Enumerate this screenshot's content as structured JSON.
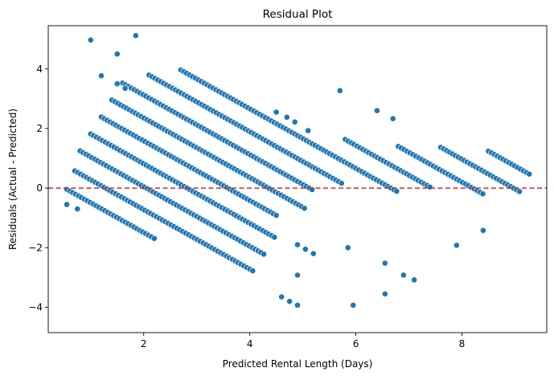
{
  "chart_data": {
    "type": "scatter",
    "title": "Residual Plot",
    "xlabel": "Predicted Rental Length (Days)",
    "ylabel": "Residuals (Actual - Predicted)",
    "xlim": [
      0.2,
      9.6
    ],
    "ylim": [
      -4.85,
      5.45
    ],
    "xticks": [
      2,
      4,
      6,
      8
    ],
    "xtick_labels": [
      "2",
      "4",
      "6",
      "8"
    ],
    "yticks": [
      -4,
      -2,
      0,
      2,
      4
    ],
    "ytick_labels": [
      "−4",
      "−2",
      "0",
      "2",
      "4"
    ],
    "grid": false,
    "legend": "none",
    "point_color": "#1f77b4",
    "reference_line": {
      "y": 0,
      "style": "dashed",
      "color": "#d62728"
    },
    "bands": [
      {
        "offset": 1,
        "x_range": [
          0.55,
          2.2
        ]
      },
      {
        "offset": 2,
        "x_range": [
          0.7,
          4.1
        ]
      },
      {
        "offset": 3,
        "x_range": [
          0.8,
          4.3
        ]
      },
      {
        "offset": 4,
        "x_range": [
          1.0,
          4.5
        ]
      },
      {
        "offset": 5,
        "x_range": [
          1.2,
          4.5
        ]
      },
      {
        "offset": 6,
        "x_range": [
          1.4,
          5.05
        ]
      },
      {
        "offset": 7,
        "x_range": [
          1.6,
          5.2
        ]
      },
      {
        "offset": 8,
        "x_range": [
          2.1,
          5.75
        ]
      },
      {
        "offset": 9,
        "x_range": [
          2.7,
          6.8
        ]
      },
      {
        "offset": 10,
        "x_range": [
          5.8,
          7.4
        ]
      },
      {
        "offset": 11,
        "x_range": [
          6.8,
          8.4
        ]
      },
      {
        "offset": 12,
        "x_range": [
          7.6,
          9.1
        ]
      },
      {
        "offset": 13,
        "x_range": [
          8.5,
          9.3
        ]
      }
    ],
    "extra_points": [
      {
        "x": 1.0,
        "y": 4.97
      },
      {
        "x": 1.85,
        "y": 5.12
      },
      {
        "x": 1.5,
        "y": 4.5
      },
      {
        "x": 1.2,
        "y": 3.77
      },
      {
        "x": 1.5,
        "y": 3.5
      },
      {
        "x": 1.65,
        "y": 3.35
      },
      {
        "x": 5.7,
        "y": 3.27
      },
      {
        "x": 6.4,
        "y": 2.6
      },
      {
        "x": 6.7,
        "y": 2.33
      },
      {
        "x": 4.5,
        "y": 2.55
      },
      {
        "x": 4.7,
        "y": 2.38
      },
      {
        "x": 4.85,
        "y": 2.22
      },
      {
        "x": 5.1,
        "y": 1.93
      },
      {
        "x": 0.55,
        "y": -0.55
      },
      {
        "x": 0.75,
        "y": -0.7
      },
      {
        "x": 4.9,
        "y": -1.9
      },
      {
        "x": 5.05,
        "y": -2.05
      },
      {
        "x": 5.2,
        "y": -2.2
      },
      {
        "x": 4.9,
        "y": -2.92
      },
      {
        "x": 4.6,
        "y": -3.65
      },
      {
        "x": 4.75,
        "y": -3.8
      },
      {
        "x": 4.9,
        "y": -3.93
      },
      {
        "x": 5.95,
        "y": -3.93
      },
      {
        "x": 6.55,
        "y": -2.52
      },
      {
        "x": 6.55,
        "y": -3.55
      },
      {
        "x": 6.9,
        "y": -2.92
      },
      {
        "x": 7.1,
        "y": -3.08
      },
      {
        "x": 7.9,
        "y": -1.92
      },
      {
        "x": 8.4,
        "y": -1.42
      },
      {
        "x": 5.85,
        "y": -2.0
      }
    ]
  }
}
